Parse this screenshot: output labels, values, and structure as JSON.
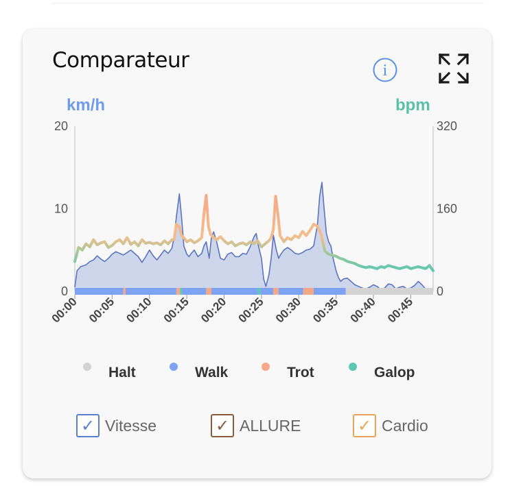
{
  "card": {
    "title": "Comparateur",
    "icons": {
      "info": "info-icon",
      "expand": "expand-icon"
    }
  },
  "axes": {
    "left_unit": "km/h",
    "right_unit": "bpm",
    "left_ticks": [
      "20",
      "10",
      "0"
    ],
    "right_ticks": [
      "320",
      "160",
      "0"
    ],
    "x_ticks": [
      "00:00",
      "00:05",
      "00:10",
      "00:15",
      "00:20",
      "00:25",
      "00:30",
      "00:35",
      "00:40",
      "00:45"
    ]
  },
  "legend": {
    "items": [
      {
        "label": "Halt",
        "color": "#d3d3d3"
      },
      {
        "label": "Walk",
        "color": "#7ea3f5"
      },
      {
        "label": "Trot",
        "color": "#f6a987"
      },
      {
        "label": "Galop",
        "color": "#5cc8b0"
      }
    ]
  },
  "toggles": [
    {
      "label": "Vitesse",
      "checked": true,
      "color": "#5b7fc9"
    },
    {
      "label": "ALLURE",
      "checked": true,
      "color": "#8a5a3c"
    },
    {
      "label": "Cardio",
      "checked": true,
      "color": "#e8a45a"
    }
  ],
  "chart_data": {
    "type": "line",
    "x_unit": "minutes",
    "xlim": [
      0,
      48
    ],
    "ylim_left": [
      0,
      20
    ],
    "ylim_right": [
      0,
      320
    ],
    "series": [
      {
        "name": "Vitesse",
        "axis": "left",
        "color": "#5a74c0",
        "fill": "#c9d1ea",
        "x": [
          0,
          0.3,
          0.8,
          1.5,
          2,
          2.5,
          3,
          3.5,
          4,
          4.5,
          5,
          5.5,
          6,
          6.5,
          7,
          7.5,
          8,
          8.5,
          9,
          9.5,
          10,
          10.5,
          11,
          11.5,
          12,
          12.5,
          13,
          13.3,
          13.6,
          14,
          14.3,
          14.6,
          15,
          15.3,
          15.6,
          16,
          16.5,
          17,
          17.3,
          17.6,
          18,
          18.3,
          18.6,
          19,
          19.5,
          20,
          20.5,
          21,
          21.5,
          22,
          22.5,
          23,
          23.5,
          24,
          24.3,
          24.6,
          25,
          25.3,
          25.6,
          26,
          26.3,
          26.6,
          27,
          27.3,
          27.6,
          28,
          28.5,
          29,
          29.5,
          30,
          30.5,
          31,
          31.5,
          32,
          32.5,
          32.8,
          33.1,
          33.4,
          33.7,
          34,
          34.3,
          34.6,
          35,
          35.3,
          35.6,
          36,
          36.5,
          37,
          37.5,
          38,
          38.5,
          39,
          39.5,
          40,
          40.5,
          41,
          41.5,
          42,
          42.5,
          43,
          43.5,
          44,
          44.5,
          45,
          45.5,
          46,
          46.5,
          47,
          47.5,
          48
        ],
        "y": [
          0.5,
          2.5,
          3,
          3.2,
          3.6,
          3.8,
          4.3,
          3.9,
          3.6,
          4,
          4.5,
          4.8,
          4.6,
          4.4,
          4.7,
          5,
          4.6,
          4.2,
          3.5,
          4.2,
          5,
          4.3,
          3.8,
          4.4,
          5,
          4.6,
          5.2,
          6.5,
          9,
          11.8,
          9,
          5.5,
          4.5,
          4.2,
          4.6,
          5,
          4.2,
          4.6,
          5.5,
          6,
          4,
          6.5,
          7.2,
          6,
          4,
          3.8,
          4.5,
          4.7,
          4.2,
          4.2,
          4.6,
          4.5,
          5.4,
          6.6,
          7,
          5.5,
          4,
          1.5,
          0.6,
          2,
          4,
          6.8,
          5,
          4,
          4.5,
          5,
          5.3,
          5,
          4.6,
          4.5,
          4.7,
          5,
          5.1,
          5.5,
          8,
          11.5,
          13.2,
          10,
          7,
          6,
          5.5,
          4,
          2.5,
          1.7,
          1.2,
          1.5,
          1.6,
          1.2,
          0.8,
          0.6,
          0.4,
          0.3,
          0.5,
          0.8,
          0.6,
          0.2,
          0.4,
          0.9,
          0.8,
          0.3,
          0.5,
          0.6,
          0.3,
          0.4,
          0.7,
          1.2,
          0.8,
          0.3,
          0.2,
          0.2
        ]
      },
      {
        "name": "Cardio",
        "axis": "right",
        "color": "#74c2a2",
        "x": [
          0,
          0.5,
          1,
          1.5,
          2,
          2.5,
          3,
          3.5,
          4,
          4.5,
          5,
          5.5,
          6,
          6.5,
          7,
          7.5,
          8,
          8.5,
          9,
          9.5,
          10,
          10.5,
          11,
          11.5,
          12,
          12.5,
          13,
          13.3,
          13.6,
          14,
          14.3,
          14.6,
          15,
          15.5,
          16,
          16.5,
          17,
          17.3,
          17.6,
          17.9,
          18.2,
          18.6,
          19,
          19.5,
          20,
          20.5,
          21,
          21.5,
          22,
          22.5,
          23,
          23.5,
          24,
          24.5,
          25,
          25.5,
          26,
          26.3,
          26.6,
          26.9,
          27.2,
          27.5,
          28,
          28.5,
          29,
          29.5,
          30,
          30.5,
          31,
          31.5,
          32,
          32.5,
          33,
          33.5,
          34,
          34.5,
          35,
          35.5,
          36,
          36.5,
          37,
          37.5,
          38,
          38.5,
          39,
          39.5,
          40,
          40.5,
          41,
          41.5,
          42,
          42.5,
          43,
          43.5,
          44,
          44.5,
          45,
          45.5,
          46,
          46.5,
          47,
          47.5,
          48
        ],
        "y": [
          58,
          85,
          80,
          92,
          86,
          100,
          90,
          94,
          96,
          85,
          89,
          96,
          100,
          92,
          104,
          91,
          96,
          88,
          100,
          93,
          95,
          92,
          94,
          90,
          98,
          92,
          100,
          100,
          130,
          125,
          108,
          104,
          96,
          100,
          94,
          98,
          104,
          150,
          186,
          125,
          110,
          104,
          100,
          106,
          98,
          92,
          96,
          88,
          92,
          94,
          90,
          96,
          92,
          98,
          86,
          92,
          98,
          104,
          120,
          184,
          150,
          108,
          96,
          104,
          100,
          108,
          104,
          116,
          108,
          118,
          130,
          126,
          110,
          78,
          72,
          70,
          68,
          64,
          62,
          58,
          56,
          54,
          50,
          48,
          46,
          48,
          46,
          44,
          48,
          46,
          50,
          48,
          46,
          44,
          46,
          48,
          44,
          46,
          48,
          46,
          44,
          50,
          40
        ]
      }
    ],
    "allure_strip": {
      "name": "ALLURE",
      "segments": [
        {
          "start": 0.0,
          "end": 6.5,
          "gait": "Walk"
        },
        {
          "start": 6.5,
          "end": 6.8,
          "gait": "Trot"
        },
        {
          "start": 6.8,
          "end": 13.6,
          "gait": "Walk"
        },
        {
          "start": 13.6,
          "end": 14.1,
          "gait": "Trot"
        },
        {
          "start": 14.1,
          "end": 14.4,
          "gait": "Galop"
        },
        {
          "start": 14.4,
          "end": 17.6,
          "gait": "Walk"
        },
        {
          "start": 17.6,
          "end": 18.3,
          "gait": "Trot"
        },
        {
          "start": 18.3,
          "end": 24.5,
          "gait": "Walk"
        },
        {
          "start": 24.5,
          "end": 24.9,
          "gait": "Galop"
        },
        {
          "start": 24.9,
          "end": 26.6,
          "gait": "Walk"
        },
        {
          "start": 26.6,
          "end": 27.3,
          "gait": "Trot"
        },
        {
          "start": 27.3,
          "end": 30.6,
          "gait": "Walk"
        },
        {
          "start": 30.6,
          "end": 32.0,
          "gait": "Trot"
        },
        {
          "start": 32.0,
          "end": 36.3,
          "gait": "Walk"
        },
        {
          "start": 36.3,
          "end": 48.0,
          "gait": "Halt"
        }
      ]
    }
  }
}
